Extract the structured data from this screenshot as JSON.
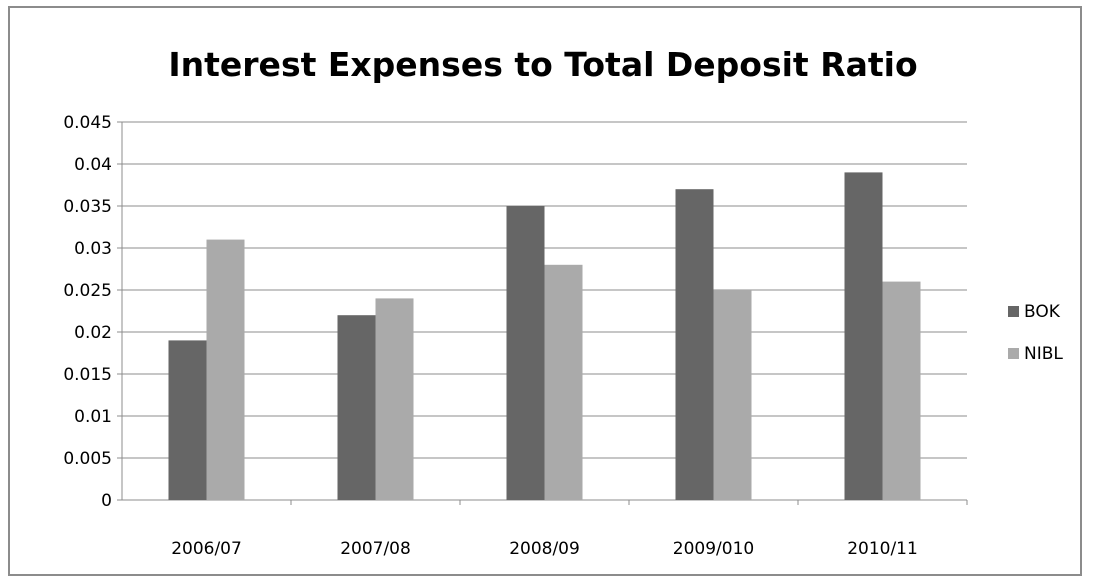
{
  "chart_data": {
    "type": "bar",
    "title": "Interest Expenses to Total Deposit Ratio",
    "xlabel": "",
    "ylabel": "",
    "categories": [
      "2006/07",
      "2007/08",
      "2008/09",
      "2009/010",
      "2010/11"
    ],
    "series": [
      {
        "name": "BOK",
        "values": [
          0.019,
          0.022,
          0.035,
          0.037,
          0.039
        ],
        "color": "#666666"
      },
      {
        "name": "NIBL",
        "values": [
          0.031,
          0.024,
          0.028,
          0.025,
          0.026
        ],
        "color": "#aaaaaa"
      }
    ],
    "ylim": [
      0,
      0.045
    ],
    "yticks": [
      "0",
      "0.005",
      "0.01",
      "0.015",
      "0.02",
      "0.025",
      "0.03",
      "0.035",
      "0.04",
      "0.045"
    ],
    "grid": true,
    "legend_position": "right"
  }
}
